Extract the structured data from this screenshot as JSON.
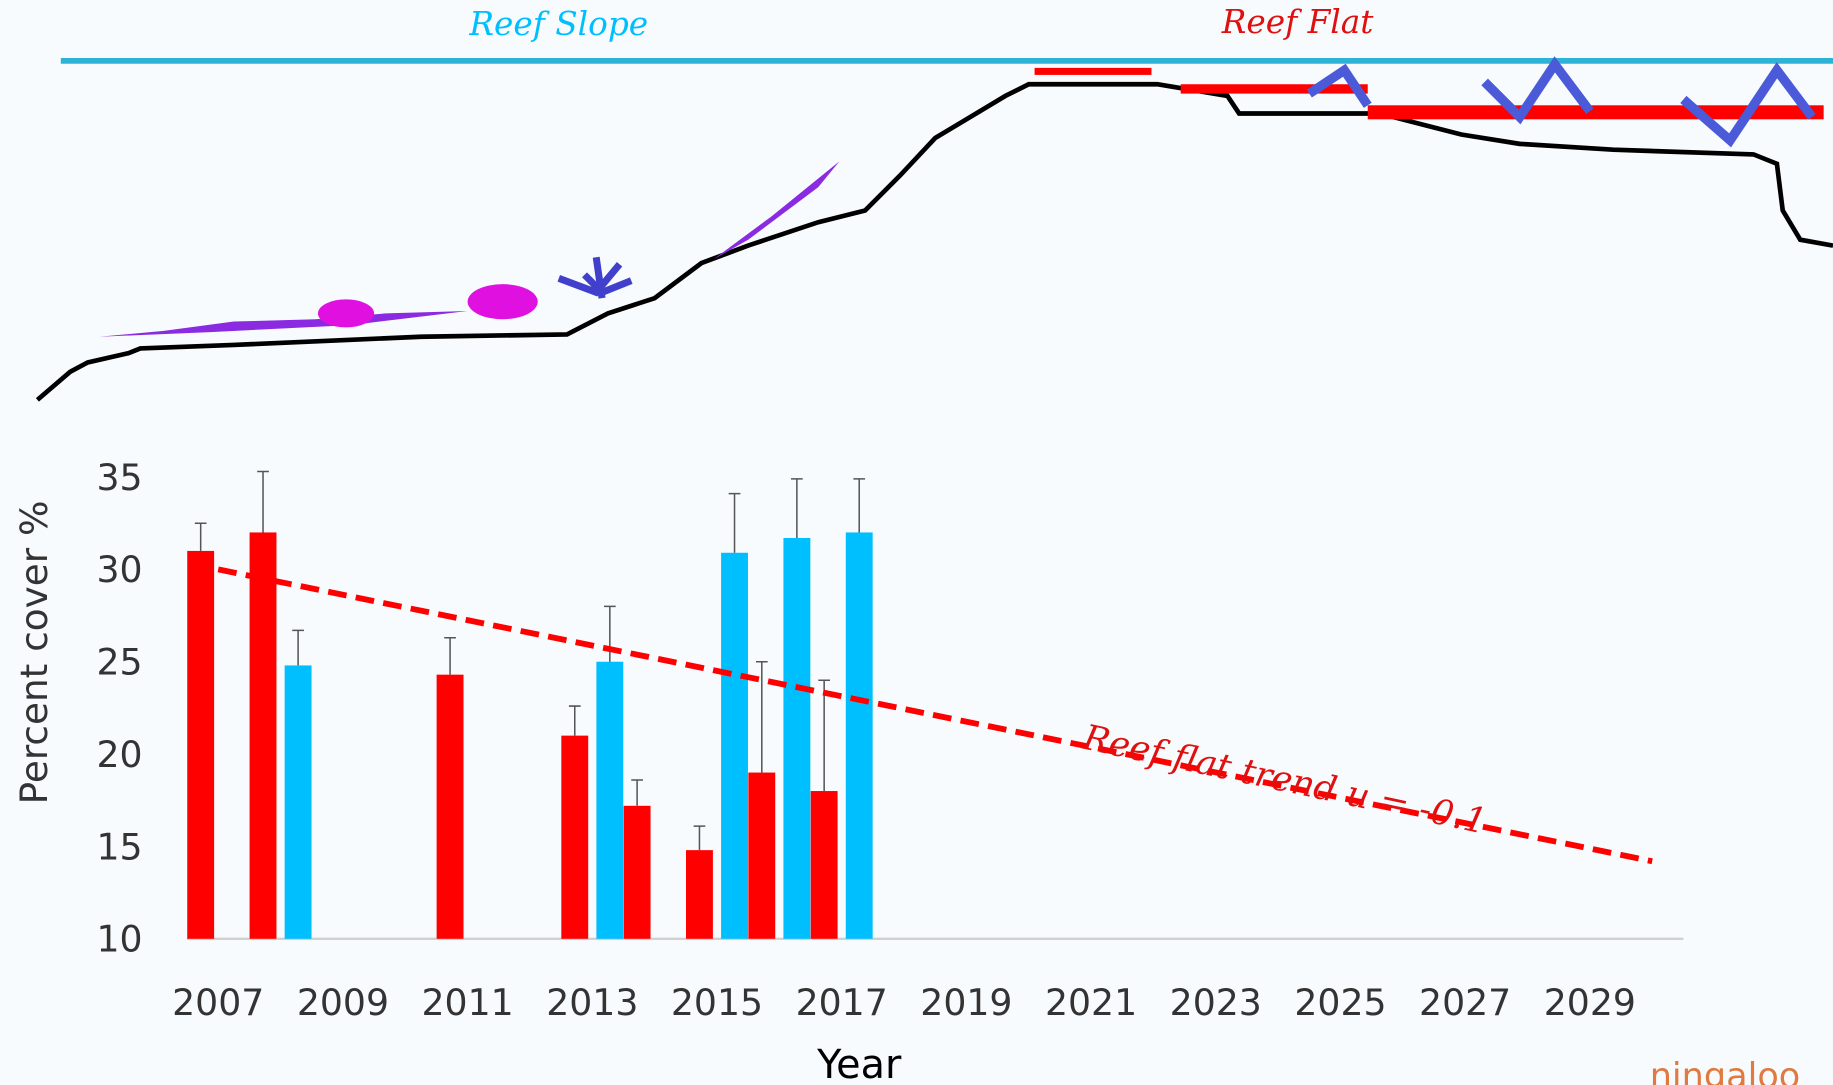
{
  "chart_data": {
    "type": "bar",
    "x_label": "Year",
    "y_label": "Percent cover %",
    "x": [
      2007,
      2008,
      2011,
      2013,
      2014,
      2015,
      2016,
      2017
    ],
    "series": [
      {
        "name": "Reef Flat",
        "color": "#ff0000",
        "values": [
          31,
          32,
          24.3,
          21,
          17.2,
          14.8,
          19,
          18
        ],
        "errors": [
          1.5,
          3.3,
          2,
          1.6,
          1.4,
          1.3,
          6,
          6
        ]
      },
      {
        "name": "Reef Slope",
        "color": "#00bfff",
        "values": [
          null,
          24.8,
          null,
          25,
          null,
          30.9,
          31.7,
          32
        ],
        "errors": [
          null,
          1.9,
          null,
          3,
          null,
          3.2,
          3.2,
          2.9
        ]
      }
    ],
    "trend": {
      "x": [
        2007,
        2030
      ],
      "values": [
        30,
        14.2
      ],
      "color": "#ff0000"
    },
    "annotation": "Reef flat trend u = -0.1",
    "xlim": [
      2006.5,
      2030.5
    ],
    "xticks": [
      2007,
      2009,
      2011,
      2013,
      2015,
      2017,
      2019,
      2021,
      2023,
      2025,
      2027,
      2029
    ],
    "ylim": [
      10,
      35
    ],
    "yticks": [
      10,
      15,
      20,
      25,
      30,
      35
    ],
    "logo_text": "ningaloo"
  }
}
